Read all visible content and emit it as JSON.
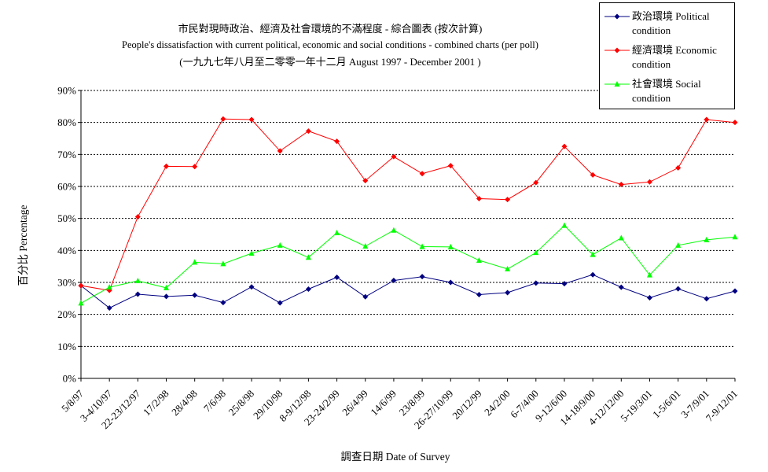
{
  "chart_data": {
    "type": "line",
    "title_zh": "市民對現時政治、經濟及社會環境的不滿程度 - 綜合圖表 (按次計算)",
    "title_en": "People's dissatisfaction with current political, economic and social conditions - combined charts  (per poll)",
    "subtitle": "(一九九七年八月至二零零一年十二月 August 1997 - December 2001 )",
    "xlabel": "調查日期 Date of Survey",
    "ylabel": "百分比 Percentage",
    "yticks": [
      "0%",
      "10%",
      "20%",
      "30%",
      "40%",
      "50%",
      "60%",
      "70%",
      "80%",
      "90%"
    ],
    "ylim": [
      0,
      90
    ],
    "grid": true,
    "legend_position": "top-right",
    "categories": [
      "5/8/97",
      "3-4/10/97",
      "22-23/12/97",
      "17/2/98",
      "28/4/98",
      "7/6/98",
      "25/8/98",
      "29/10/98",
      "8-9/12/98",
      "23-24/2/99",
      "26/4/99",
      "14/6/99",
      "23/8/99",
      "26-27/10/99",
      "20/12/99",
      "24/2/00",
      "6-7/4/00",
      "9-12/6/00",
      "14-18/9/00",
      "4-12/12/00",
      "5-19/3/01",
      "1-5/6/01",
      "3-7/9/01",
      "7-9/12/01"
    ],
    "series": [
      {
        "name": "政治環境 Political condition",
        "legend_lines": [
          "政治環境 Political",
          "condition"
        ],
        "color": "#000080",
        "marker": "diamond",
        "values": [
          29,
          22,
          26.3,
          25.6,
          26,
          23.7,
          28.6,
          23.6,
          27.9,
          31.6,
          25.5,
          30.6,
          31.8,
          30,
          26.2,
          26.8,
          29.8,
          29.6,
          32.4,
          28.5,
          25.2,
          28,
          24.9,
          27.3
        ]
      },
      {
        "name": "經濟環境 Economic condition",
        "legend_lines": [
          "經濟環境 Economic",
          "condition"
        ],
        "color": "#ff0000",
        "marker": "diamond",
        "values": [
          29,
          27.5,
          50.5,
          66.3,
          66.2,
          81.1,
          80.9,
          71.1,
          77.3,
          74.1,
          61.8,
          69.3,
          64,
          66.5,
          56.2,
          55.9,
          61.2,
          72.5,
          63.6,
          60.6,
          61.4,
          65.8,
          80.9,
          80
        ]
      },
      {
        "name": "社會環境 Social condition",
        "legend_lines": [
          "社會環境 Social",
          "condition"
        ],
        "color": "#00ff00",
        "marker": "triangle",
        "values": [
          23.5,
          28.5,
          30.5,
          28.3,
          36.3,
          35.8,
          39.1,
          41.6,
          37.8,
          45.5,
          41.3,
          46.3,
          41.2,
          41.1,
          36.9,
          34.2,
          39.3,
          47.8,
          38.7,
          43.9,
          32.3,
          41.6,
          43.3,
          44.2
        ]
      }
    ]
  }
}
